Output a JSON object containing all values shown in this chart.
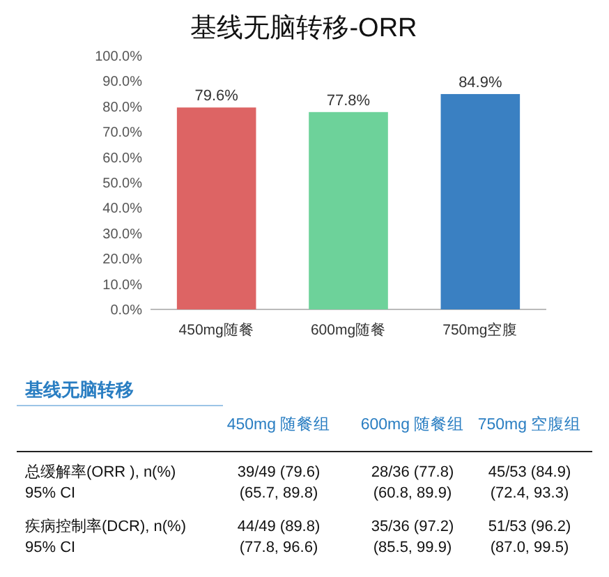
{
  "chart_data": {
    "type": "bar",
    "title": "基线无脑转移-ORR",
    "categories": [
      "450mg随餐",
      "600mg随餐",
      "750mg空腹"
    ],
    "values": [
      79.6,
      77.8,
      84.9
    ],
    "colors": [
      "#dd6464",
      "#6dd29a",
      "#3a80c2"
    ],
    "value_labels": [
      "79.6%",
      "77.8%",
      "84.9%"
    ],
    "ylim": [
      0,
      100
    ],
    "yticks": [
      {
        "value": 0,
        "label": "0.0%"
      },
      {
        "value": 10,
        "label": "10.0%"
      },
      {
        "value": 20,
        "label": "20.0%"
      },
      {
        "value": 30,
        "label": "30.0%"
      },
      {
        "value": 40,
        "label": "40.0%"
      },
      {
        "value": 50,
        "label": "50.0%"
      },
      {
        "value": 60,
        "label": "60.0%"
      },
      {
        "value": 70,
        "label": "70.0%"
      },
      {
        "value": 80,
        "label": "80.0%"
      },
      {
        "value": 90,
        "label": "90.0%"
      },
      {
        "value": 100,
        "label": "100.0%"
      }
    ],
    "annotations": [
      "基线无脑转移",
      "450mg 随餐组",
      "600mg 随餐组",
      "750mg 空腹组",
      "总缓解率(ORR ), n(%)\n95% CI",
      "39/49 (79.6)\n(65.7, 89.8)",
      "28/36 (77.8)\n(60.8, 89.9)",
      "45/53 (84.9)\n(72.4, 93.3)",
      "疾病控制率(DCR), n(%)\n95% CI",
      "44/49 (89.8)\n(77.8, 96.6)",
      "35/36 (97.2)\n(85.5, 99.9)",
      "51/53 (96.2)\n(87.0, 99.5)"
    ]
  }
}
